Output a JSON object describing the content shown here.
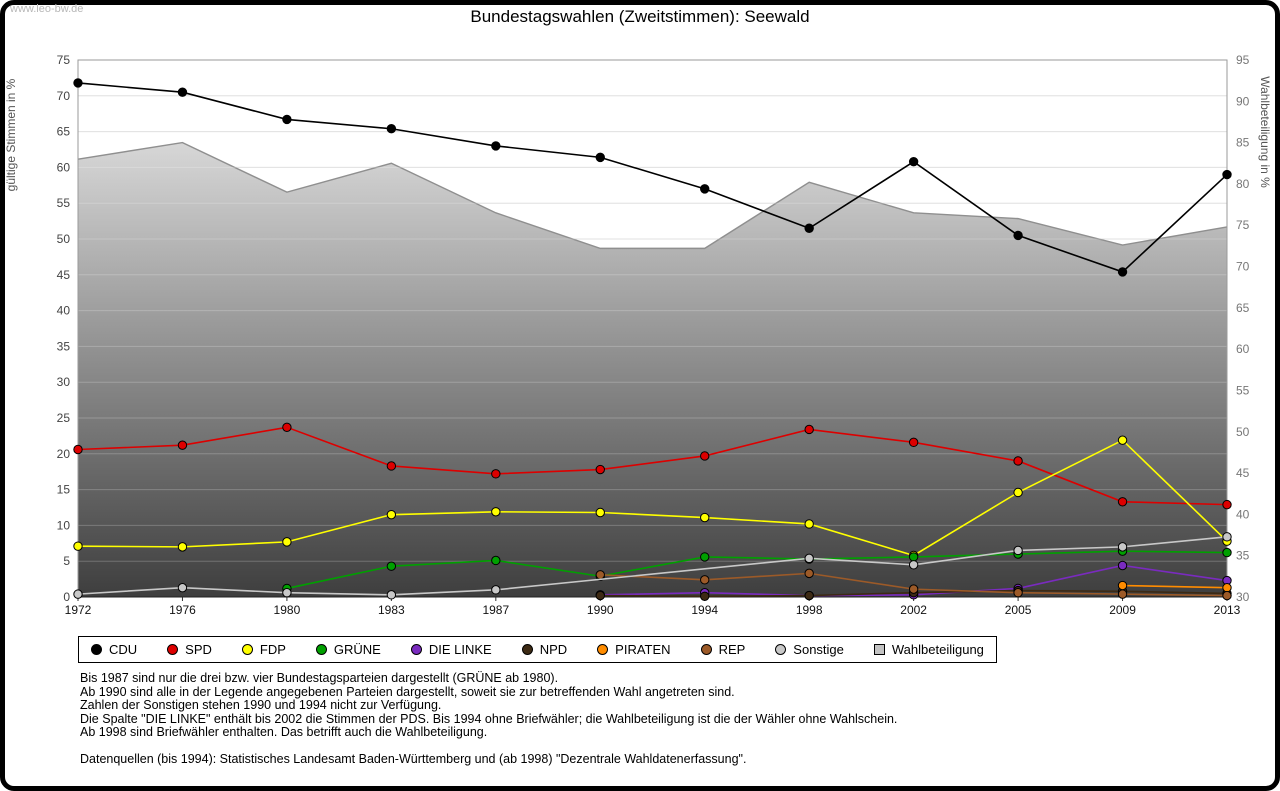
{
  "watermark": "www.leo-bw.de",
  "chart_data": {
    "type": "line",
    "title": "Bundestagswahlen (Zweitstimmen): Seewald",
    "categories": [
      "1972",
      "1976",
      "1980",
      "1983",
      "1987",
      "1990",
      "1994",
      "1998",
      "2002",
      "2005",
      "2009",
      "2013"
    ],
    "left_axis": {
      "label": "gültige Stimmen in %",
      "min": 0,
      "max": 75,
      "step": 5
    },
    "right_axis": {
      "label": "Wahlbeteiligung in %",
      "min": 30,
      "max": 95,
      "step": 5
    },
    "grid": true,
    "legend_position": "bottom",
    "series": [
      {
        "name": "CDU",
        "color": "#000000",
        "axis": "left",
        "values": [
          71.8,
          70.5,
          66.7,
          65.4,
          63.0,
          61.4,
          57.0,
          51.5,
          60.8,
          50.5,
          45.4,
          59.0
        ]
      },
      {
        "name": "SPD",
        "color": "#dd0000",
        "axis": "left",
        "values": [
          20.6,
          21.2,
          23.7,
          18.3,
          17.2,
          17.8,
          19.7,
          23.4,
          21.6,
          19.0,
          13.3,
          12.9
        ]
      },
      {
        "name": "FDP",
        "color": "#ffff00",
        "axis": "left",
        "values": [
          7.1,
          7.0,
          7.7,
          11.5,
          11.9,
          11.8,
          11.1,
          10.2,
          5.8,
          14.6,
          21.9,
          7.8
        ]
      },
      {
        "name": "GRÜNE",
        "color": "#00a000",
        "axis": "left",
        "values": [
          null,
          null,
          1.2,
          4.3,
          5.1,
          2.9,
          5.6,
          5.3,
          5.6,
          6.0,
          6.4,
          6.2
        ]
      },
      {
        "name": "DIE LINKE",
        "color": "#7a2bbf",
        "axis": "left",
        "values": [
          null,
          null,
          null,
          null,
          null,
          0.3,
          0.6,
          0.2,
          0.3,
          1.2,
          4.4,
          2.3
        ]
      },
      {
        "name": "NPD",
        "color": "#3d2a14",
        "axis": "left",
        "values": [
          null,
          null,
          null,
          null,
          null,
          0.2,
          0.1,
          0.2,
          0.6,
          0.9,
          0.8,
          0.5
        ]
      },
      {
        "name": "PIRATEN",
        "color": "#ff8c00",
        "axis": "left",
        "values": [
          null,
          null,
          null,
          null,
          null,
          null,
          null,
          null,
          null,
          null,
          1.6,
          1.3
        ]
      },
      {
        "name": "REP",
        "color": "#9c5a28",
        "axis": "left",
        "values": [
          null,
          null,
          null,
          null,
          null,
          3.1,
          2.4,
          3.3,
          1.1,
          0.6,
          0.4,
          0.2
        ]
      },
      {
        "name": "Sonstige",
        "color": "#c8c8c8",
        "axis": "left",
        "values": [
          0.4,
          1.3,
          0.6,
          0.3,
          1.0,
          null,
          null,
          5.4,
          4.5,
          6.5,
          7.0,
          8.4
        ]
      }
    ],
    "participation": {
      "name": "Wahlbeteiligung",
      "axis": "right",
      "legend_color": "#c3c3c3",
      "fill_top": "#d8d8d8",
      "fill_bottom": "#3e3e3e",
      "edge_color": "#8f8f8f",
      "values": [
        83.0,
        85.0,
        79.0,
        82.5,
        76.5,
        72.2,
        72.2,
        80.2,
        76.5,
        75.8,
        72.6,
        74.8
      ]
    }
  },
  "notes": [
    "Bis 1987 sind nur die drei bzw. vier Bundestagsparteien dargestellt (GRÜNE ab 1980).",
    "Ab 1990 sind alle in der Legende angegebenen Parteien dargestellt, soweit sie zur betreffenden Wahl angetreten sind.",
    "Zahlen der Sonstigen stehen 1990 und 1994 nicht zur Verfügung.",
    "Die Spalte \"DIE LINKE\" enthält bis 2002 die Stimmen der PDS. Bis 1994 ohne Briefwähler; die Wahlbeteiligung ist die der Wähler ohne Wahlschein.",
    "Ab 1998 sind Briefwähler enthalten. Das betrifft auch die Wahlbeteiligung.",
    "",
    "Datenquellen (bis 1994): Statistisches Landesamt Baden-Württemberg und (ab 1998) \"Dezentrale Wahldatenerfassung\"."
  ]
}
